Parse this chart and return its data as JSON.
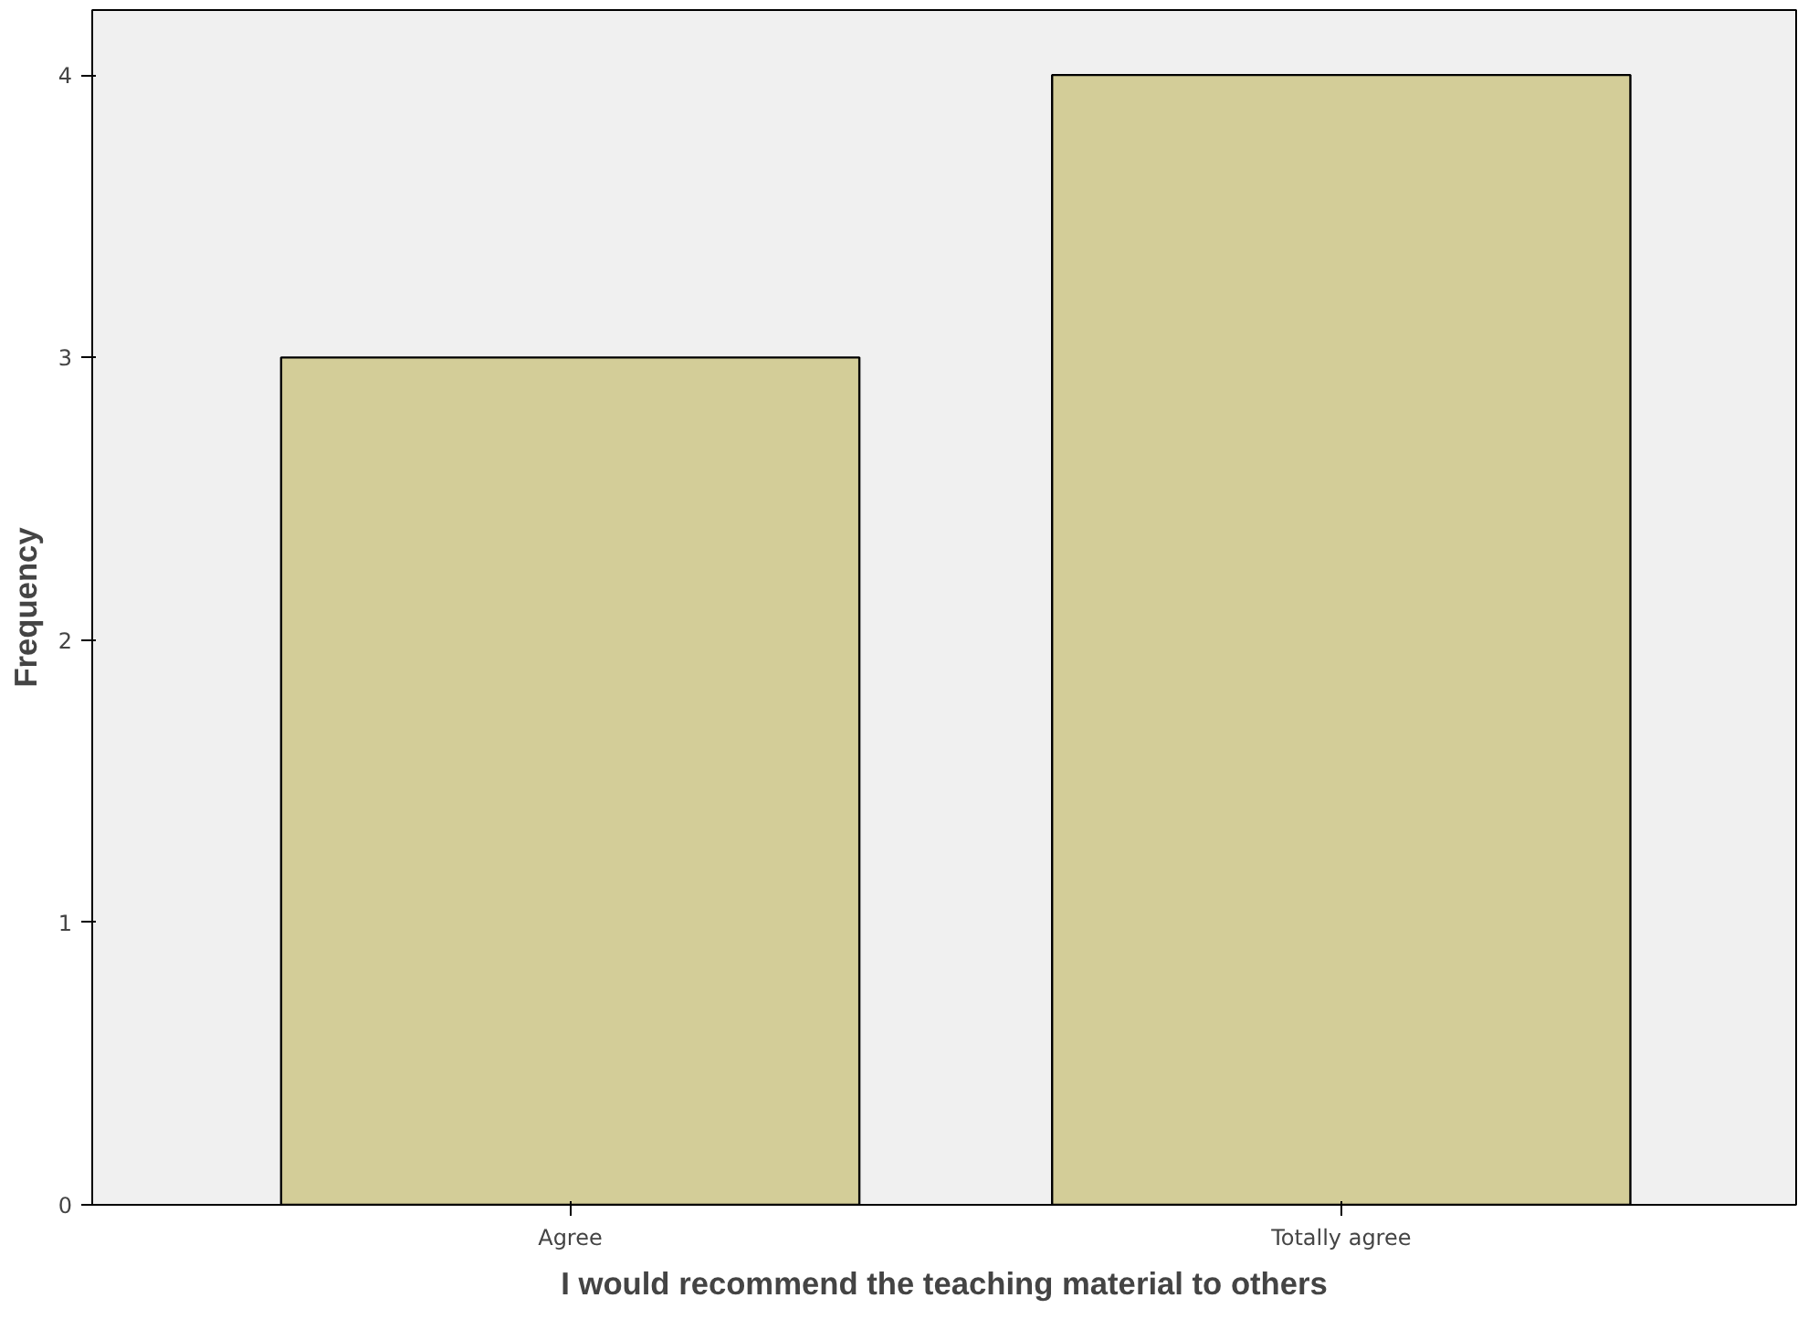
{
  "chart_data": {
    "type": "bar",
    "xlabel": "I would recommend the teaching material to others",
    "ylabel": "Frequency",
    "categories": [
      "Agree",
      "Totally agree"
    ],
    "values": [
      3,
      4
    ],
    "color": "#d3cd98",
    "ylim": [
      0,
      4.23
    ],
    "yticks": [
      0,
      1,
      2,
      3,
      4
    ],
    "grid": false
  }
}
